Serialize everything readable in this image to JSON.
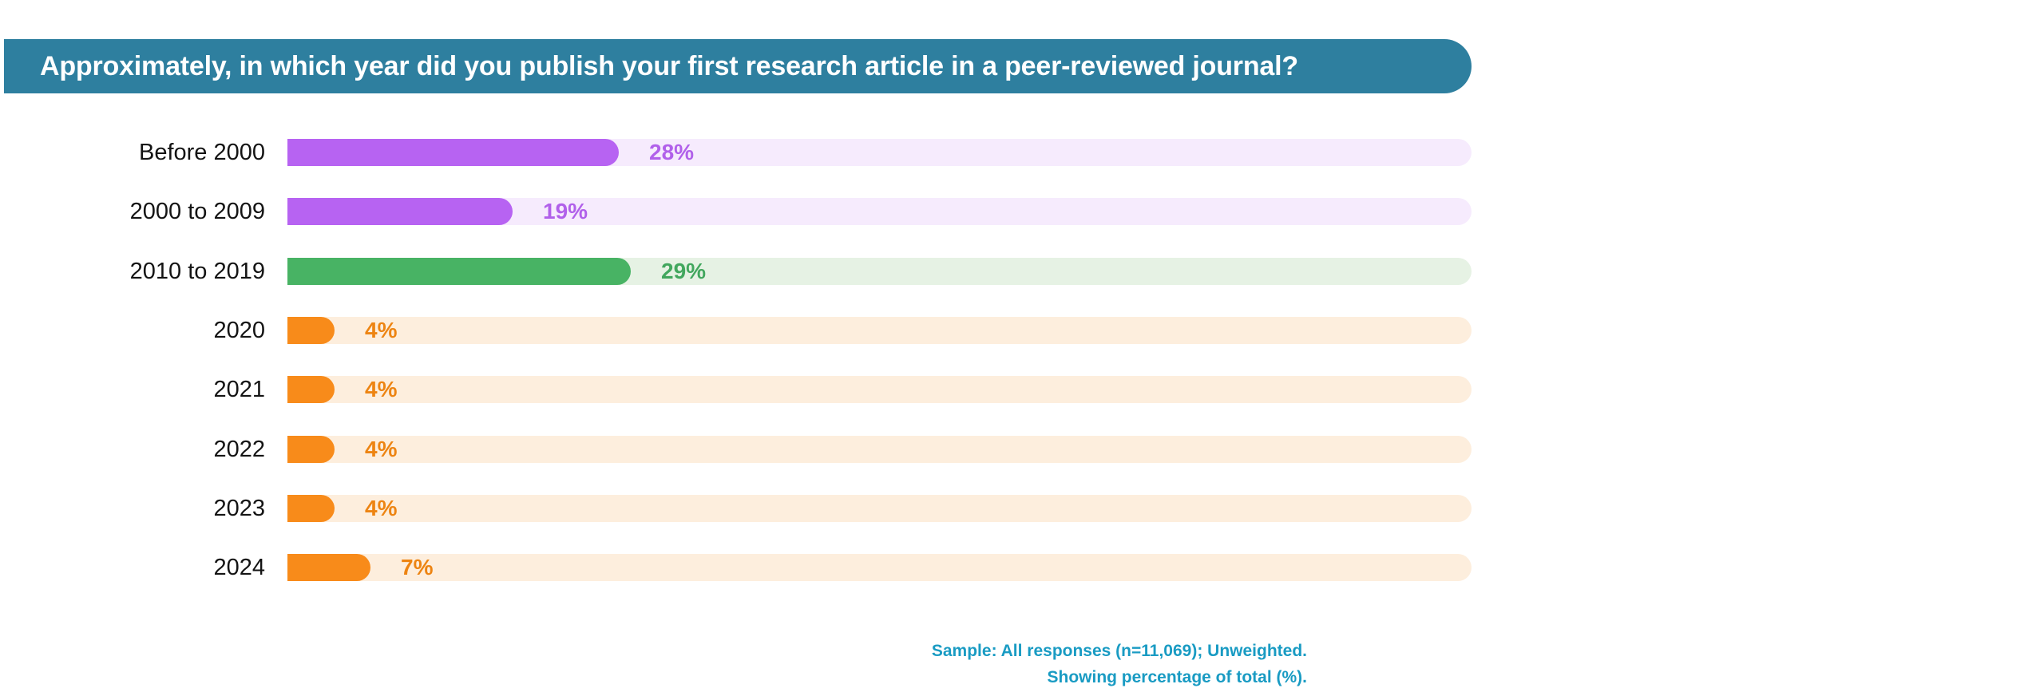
{
  "title": "Approximately, in which year did you publish your first research article in a peer-reviewed journal?",
  "banner_color": "#2e7f9f",
  "footer": {
    "line1": "Sample: All responses (n=11,069); Unweighted.",
    "line2": "Showing percentage of total (%).",
    "color": "#199bc3"
  },
  "chart_data": {
    "type": "bar",
    "orientation": "horizontal",
    "title": "Approximately, in which year did you publish your first research article in a peer-reviewed journal?",
    "categories": [
      "Before 2000",
      "2000 to 2009",
      "2010 to 2019",
      "2020",
      "2021",
      "2022",
      "2023",
      "2024"
    ],
    "values": [
      28,
      19,
      29,
      4,
      4,
      4,
      4,
      7
    ],
    "value_labels": [
      "28%",
      "19%",
      "29%",
      "4%",
      "4%",
      "4%",
      "4%",
      "7%"
    ],
    "xlim": [
      0,
      100
    ],
    "grid": false,
    "legend": false,
    "groups": {
      "purple": {
        "fill": "#b763f2",
        "track": "#f6ebfd",
        "text": "#b160ea"
      },
      "green": {
        "fill": "#48b364",
        "track": "#e6f2e4",
        "text": "#42a75e"
      },
      "orange": {
        "fill": "#f88b1a",
        "track": "#fdeedd",
        "text": "#ed8412"
      }
    },
    "rows": [
      {
        "label": "Before 2000",
        "value": 28,
        "display": "28%",
        "group": "purple"
      },
      {
        "label": "2000 to 2009",
        "value": 19,
        "display": "19%",
        "group": "purple"
      },
      {
        "label": "2010 to 2019",
        "value": 29,
        "display": "29%",
        "group": "green"
      },
      {
        "label": "2020",
        "value": 4,
        "display": "4%",
        "group": "orange"
      },
      {
        "label": "2021",
        "value": 4,
        "display": "4%",
        "group": "orange"
      },
      {
        "label": "2022",
        "value": 4,
        "display": "4%",
        "group": "orange"
      },
      {
        "label": "2023",
        "value": 4,
        "display": "4%",
        "group": "orange"
      },
      {
        "label": "2024",
        "value": 7,
        "display": "7%",
        "group": "orange"
      }
    ]
  }
}
